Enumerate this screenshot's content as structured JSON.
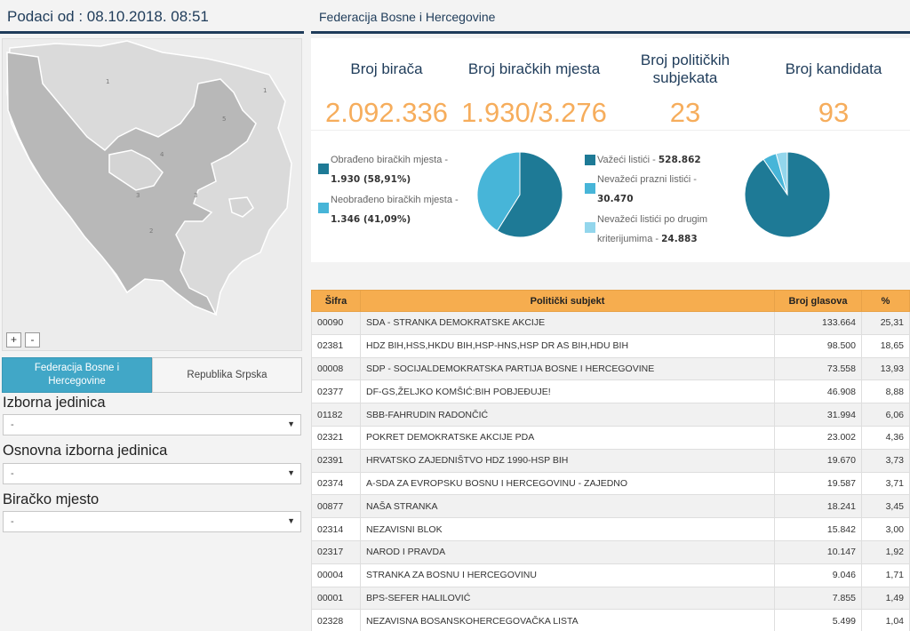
{
  "left": {
    "header": "Podaci od : 08.10.2018. 08:51",
    "zoom_in": "+",
    "zoom_out": "-",
    "tabs": [
      {
        "label": "Federacija Bosne i Hercegovine",
        "active": true
      },
      {
        "label": "Republika Srpska",
        "active": false
      }
    ],
    "filters": [
      {
        "label": "Izborna jedinica",
        "value": "-"
      },
      {
        "label": "Osnovna izborna jedinica",
        "value": "-"
      },
      {
        "label": "Biračko mjesto",
        "value": "-"
      }
    ],
    "map_region_numbers": [
      "1",
      "1",
      "2",
      "3",
      "3",
      "4",
      "5"
    ]
  },
  "right": {
    "header": "Federacija Bosne i Hercegovine",
    "stats": [
      {
        "title": "Broj birača",
        "value": "2.092.336"
      },
      {
        "title": "Broj biračkih mjesta",
        "value": "1.930/3.276"
      },
      {
        "title": "Broj političkih subjekata",
        "value": "23"
      },
      {
        "title": "Broj kandidata",
        "value": "93"
      }
    ],
    "legend1": [
      {
        "label": "Obrađeno biračkih mjesta -",
        "value": "1.930 (58,91%)",
        "color": "#1e7a96"
      },
      {
        "label": "Neobrađeno biračkih mjesta -",
        "value": "1.346 (41,09%)",
        "color": "#47b5d8"
      }
    ],
    "legend2": [
      {
        "label": "Važeći listići - ",
        "value": "528.862",
        "color": "#1e7a96"
      },
      {
        "label": "Nevažeći prazni listići -",
        "value": "30.470",
        "color": "#47b5d8"
      },
      {
        "label": "Nevažeći listići po drugim kriterijumima - ",
        "value": "24.883",
        "color": "#93d6ec"
      }
    ],
    "pie1": [
      58.91,
      41.09
    ],
    "pie2": [
      528862,
      30470,
      24883
    ],
    "table": {
      "headers": [
        "Šifra",
        "Politički subjekt",
        "Broj glasova",
        "%"
      ],
      "rows": [
        [
          "00090",
          "SDA - STRANKA DEMOKRATSKE AKCIJE",
          "133.664",
          "25,31"
        ],
        [
          "02381",
          "HDZ BIH,HSS,HKDU BIH,HSP-HNS,HSP DR AS BIH,HDU BIH",
          "98.500",
          "18,65"
        ],
        [
          "00008",
          "SDP - SOCIJALDEMOKRATSKA PARTIJA BOSNE I HERCEGOVINE",
          "73.558",
          "13,93"
        ],
        [
          "02377",
          "DF-GS,ŽELJKO KOMŠIĆ:BIH POBJEĐUJE!",
          "46.908",
          "8,88"
        ],
        [
          "01182",
          "SBB-FAHRUDIN RADONČIĆ",
          "31.994",
          "6,06"
        ],
        [
          "02321",
          "POKRET DEMOKRATSKE AKCIJE PDA",
          "23.002",
          "4,36"
        ],
        [
          "02391",
          "HRVATSKO ZAJEDNIŠTVO HDZ 1990-HSP BIH",
          "19.670",
          "3,73"
        ],
        [
          "02374",
          "A-SDA ZA EVROPSKU BOSNU I HERCEGOVINU - ZAJEDNO",
          "19.587",
          "3,71"
        ],
        [
          "00877",
          "NAŠA STRANKA",
          "18.241",
          "3,45"
        ],
        [
          "02314",
          "NEZAVISNI BLOK",
          "15.842",
          "3,00"
        ],
        [
          "02317",
          "NAROD I PRAVDA",
          "10.147",
          "1,92"
        ],
        [
          "00004",
          "STRANKA ZA BOSNU I HERCEGOVINU",
          "9.046",
          "1,71"
        ],
        [
          "00001",
          "BPS-SEFER HALILOVIĆ",
          "7.855",
          "1,49"
        ],
        [
          "02328",
          "NEZAVISNA BOSANSKOHERCEGOVAČKA LISTA",
          "5.499",
          "1,04"
        ]
      ]
    }
  }
}
